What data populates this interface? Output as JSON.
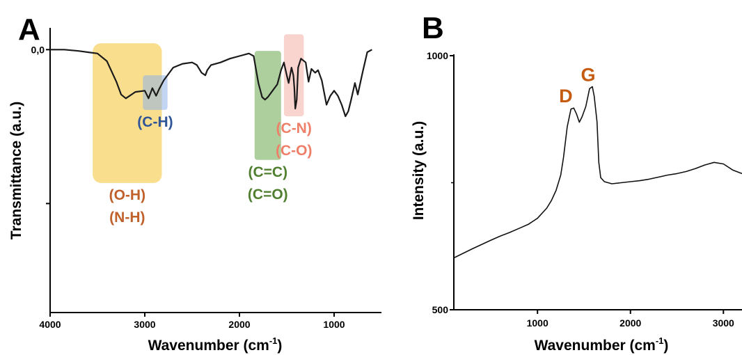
{
  "colors": {
    "axis": "#000000",
    "line": "#1a1a1a",
    "oh_nh_box": "#f5c842",
    "oh_nh_text": "#c0612b",
    "ch_box": "#8fb3e8",
    "ch_text": "#2f5597",
    "cc_co_box": "#6aa84f",
    "cc_co_text": "#4f7f2f",
    "cn_co_box": "#f4b0a6",
    "cn_co_text": "#ee7f68",
    "dg_text": "#c55a11"
  },
  "chart_data": [
    {
      "panel": "A",
      "type": "line",
      "ylabel": "Transmittance (a.u.)",
      "xlabel": "Wavenumber (cm",
      "xlabel_sup": "-1",
      "xlabel_close": ")",
      "x_reversed": true,
      "xlim": [
        4000,
        500
      ],
      "xticks": [
        4000,
        3000,
        2000,
        1000
      ],
      "ylim": [
        -2.05,
        0.17
      ],
      "y_tick_label": "0,0",
      "y_tick_value": 0.0,
      "extra_y_ticks": [
        -1.2
      ],
      "series": [
        {
          "x": [
            4000,
            3850,
            3700,
            3500,
            3400,
            3300,
            3250,
            3200,
            3100,
            3000,
            2960,
            2920,
            2880,
            2850,
            2800,
            2700,
            2600,
            2500,
            2450,
            2400,
            2360,
            2340,
            2300,
            2200,
            2100,
            2000,
            1900,
            1850,
            1800,
            1760,
            1730,
            1700,
            1650,
            1600,
            1560,
            1530,
            1500,
            1480,
            1450,
            1430,
            1420,
            1410,
            1395,
            1380,
            1350,
            1300,
            1270,
            1240,
            1200,
            1170,
            1130,
            1080,
            1040,
            1000,
            960,
            920,
            880,
            850,
            820,
            780,
            750,
            700,
            650,
            600
          ],
          "y": [
            0.0,
            0.0,
            -0.01,
            -0.03,
            -0.09,
            -0.25,
            -0.35,
            -0.38,
            -0.33,
            -0.32,
            -0.38,
            -0.3,
            -0.36,
            -0.31,
            -0.24,
            -0.14,
            -0.11,
            -0.1,
            -0.12,
            -0.18,
            -0.2,
            -0.16,
            -0.12,
            -0.1,
            -0.07,
            -0.05,
            -0.03,
            -0.05,
            -0.26,
            -0.37,
            -0.39,
            -0.37,
            -0.32,
            -0.27,
            -0.16,
            -0.1,
            -0.2,
            -0.26,
            -0.14,
            -0.2,
            -0.3,
            -0.46,
            -0.39,
            -0.14,
            -0.07,
            -0.1,
            -0.25,
            -0.15,
            -0.18,
            -0.16,
            -0.24,
            -0.43,
            -0.36,
            -0.32,
            -0.36,
            -0.43,
            -0.52,
            -0.48,
            -0.39,
            -0.26,
            -0.35,
            -0.18,
            -0.02,
            0.0
          ]
        }
      ],
      "annotations": [
        {
          "label1": "(O-H)",
          "label2": "(N-H)",
          "x_from": 3550,
          "x_to": 2820,
          "y_from": 0.05,
          "y_to": -1.04,
          "color_key": "oh_nh"
        },
        {
          "label1": "(C-H)",
          "label2": "",
          "x_from": 3020,
          "x_to": 2760,
          "y_from": -0.2,
          "y_to": -0.47,
          "color_key": "ch"
        },
        {
          "label1": "(C=C)",
          "label2": "(C=O)",
          "x_from": 1840,
          "x_to": 1560,
          "y_from": -0.01,
          "y_to": -0.86,
          "color_key": "cc_co"
        },
        {
          "label1": "(C-N)",
          "label2": "(C-O)",
          "x_from": 1530,
          "x_to": 1320,
          "y_from": 0.12,
          "y_to": -0.52,
          "color_key": "cn_co"
        }
      ]
    },
    {
      "panel": "B",
      "type": "line",
      "ylabel": "Intensity (a.u.)",
      "xlabel": "Wavenumber (cm",
      "xlabel_sup": "-1",
      "xlabel_close": ")",
      "xlim": [
        100,
        3200
      ],
      "xticks": [
        1000,
        2000,
        3000
      ],
      "ylim": [
        500,
        1000
      ],
      "yticks": [
        500,
        1000
      ],
      "minor_yticks": [
        750
      ],
      "series": [
        {
          "x": [
            100,
            300,
            500,
            600,
            700,
            800,
            900,
            1000,
            1100,
            1150,
            1200,
            1250,
            1280,
            1320,
            1360,
            1390,
            1420,
            1450,
            1480,
            1520,
            1560,
            1590,
            1610,
            1640,
            1660,
            1680,
            1720,
            1800,
            1900,
            2000,
            2100,
            2200,
            2300,
            2400,
            2500,
            2600,
            2700,
            2800,
            2900,
            3000,
            3100,
            3200
          ],
          "y": [
            602,
            620,
            637,
            645,
            652,
            660,
            668,
            680,
            700,
            715,
            735,
            765,
            800,
            860,
            895,
            897,
            885,
            869,
            880,
            900,
            935,
            939,
            920,
            870,
            790,
            760,
            752,
            748,
            750,
            752,
            754,
            757,
            761,
            765,
            768,
            772,
            778,
            785,
            790,
            787,
            775,
            768
          ]
        }
      ],
      "peaks": [
        {
          "label": "D",
          "x": 1350,
          "y": 897
        },
        {
          "label": "G",
          "x": 1590,
          "y": 939
        }
      ]
    }
  ]
}
